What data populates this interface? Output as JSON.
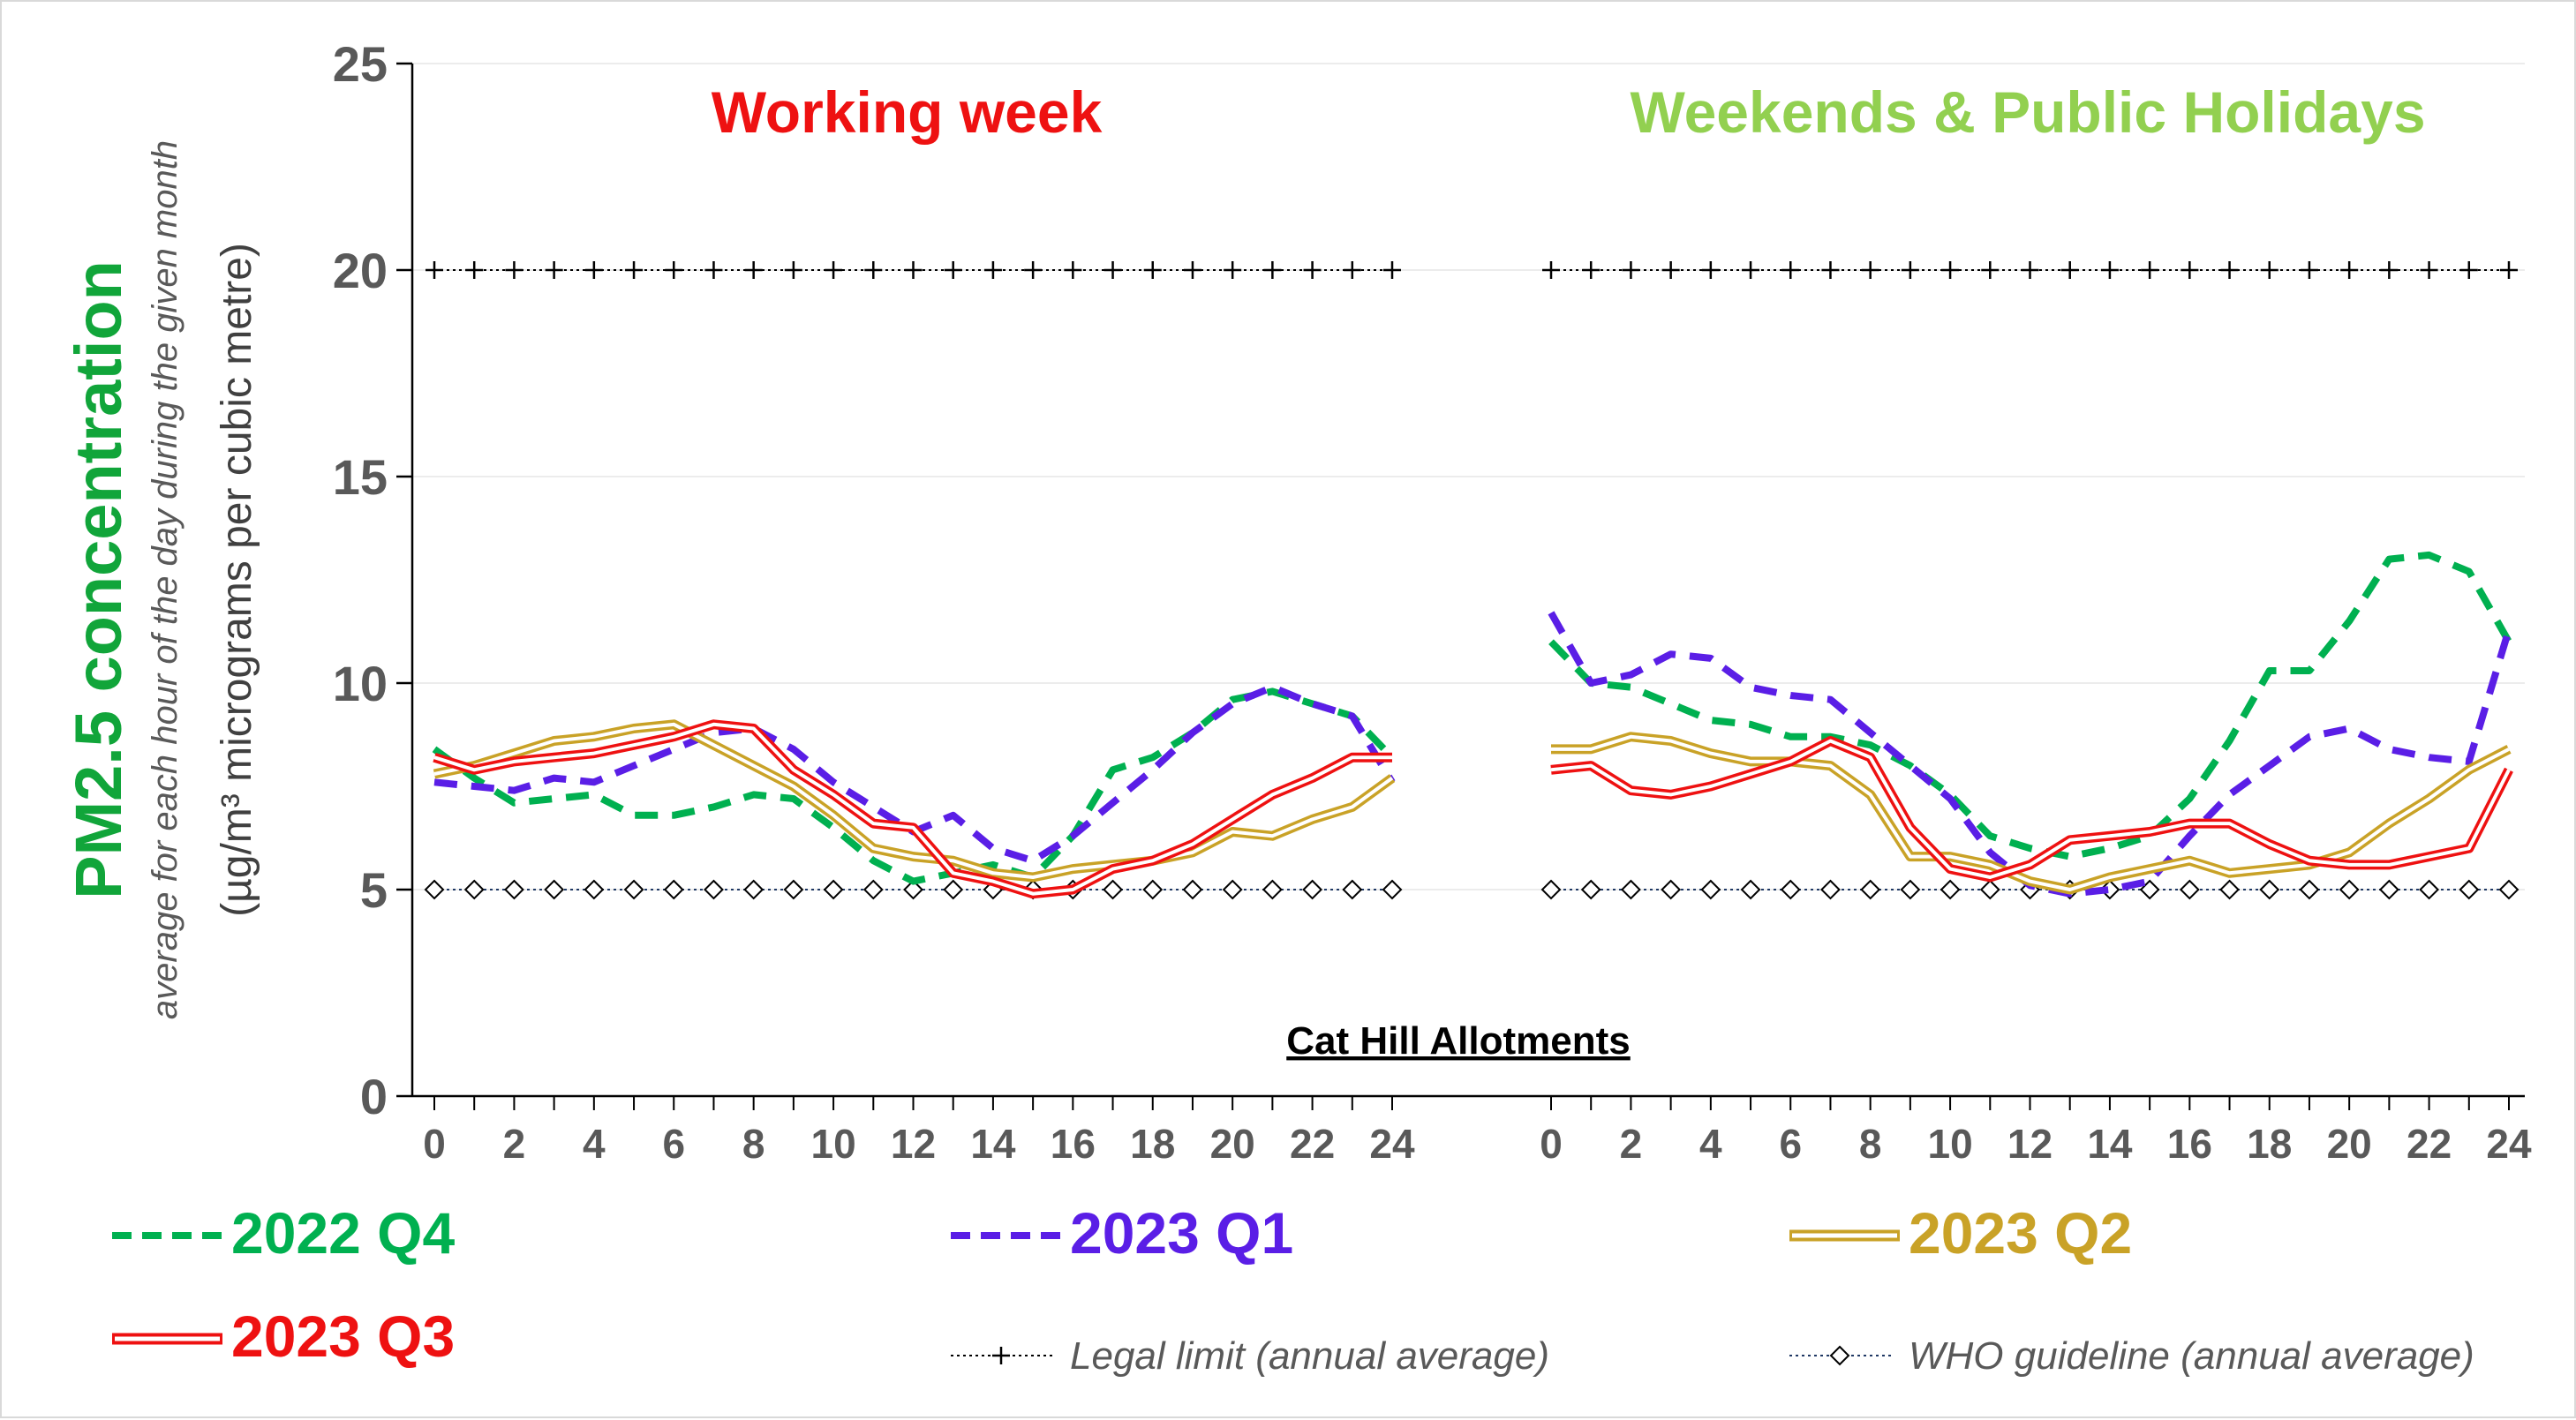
{
  "chart_data": {
    "type": "line",
    "ylabel_main": "PM2.5 concentration",
    "ylabel_sub": "average for each hour of the day during the given month",
    "ylabel_units": "(µg/m³ micrograms per cubic metre)",
    "site_label": "Cat Hill Allotments",
    "ylim": [
      0,
      25
    ],
    "y_ticks": [
      "0",
      "5",
      "10",
      "15",
      "20",
      "25"
    ],
    "x_ticks": [
      "0",
      "2",
      "4",
      "6",
      "8",
      "10",
      "12",
      "14",
      "16",
      "18",
      "20",
      "22",
      "24"
    ],
    "grid": "horizontal",
    "legend_position": "bottom",
    "panels": [
      {
        "key": "working",
        "title": "Working week",
        "title_color": "#ee1111"
      },
      {
        "key": "weekend",
        "title": "Weekends & Public Holidays",
        "title_color": "#92d050"
      }
    ],
    "series": [
      {
        "name": "2022 Q4",
        "color": "#00b050",
        "style": "dashed",
        "working": [
          8.4,
          7.7,
          7.1,
          7.2,
          7.3,
          6.8,
          6.8,
          7.0,
          7.3,
          7.2,
          6.5,
          5.7,
          5.2,
          5.4,
          5.6,
          5.3,
          6.3,
          7.9,
          8.2,
          8.8,
          9.6,
          9.8,
          9.5,
          9.2,
          8.2
        ],
        "weekend": [
          11.0,
          10.0,
          9.9,
          9.5,
          9.1,
          9.0,
          8.7,
          8.7,
          8.5,
          8.0,
          7.3,
          6.3,
          6.0,
          5.8,
          6.0,
          6.3,
          7.2,
          8.6,
          10.3,
          10.3,
          11.5,
          13.0,
          13.1,
          12.7,
          11.0
        ]
      },
      {
        "name": "2023 Q1",
        "color": "#5a1ee6",
        "style": "dashed",
        "working": [
          7.6,
          7.5,
          7.4,
          7.7,
          7.6,
          8.0,
          8.4,
          8.8,
          8.9,
          8.4,
          7.6,
          7.0,
          6.4,
          6.8,
          6.0,
          5.7,
          6.3,
          7.1,
          7.9,
          8.8,
          9.5,
          9.9,
          9.5,
          9.2,
          7.6
        ],
        "weekend": [
          11.7,
          10.0,
          10.2,
          10.7,
          10.6,
          9.9,
          9.7,
          9.6,
          8.8,
          8.0,
          7.2,
          5.9,
          5.1,
          4.9,
          5.0,
          5.2,
          6.3,
          7.3,
          8.0,
          8.7,
          8.9,
          8.4,
          8.2,
          8.1,
          11.3
        ]
      },
      {
        "name": "2023 Q2",
        "color": "#c9a227",
        "style": "double",
        "working": [
          7.8,
          8.0,
          8.3,
          8.6,
          8.7,
          8.9,
          9.0,
          8.5,
          8.0,
          7.5,
          6.8,
          6.0,
          5.8,
          5.7,
          5.4,
          5.3,
          5.5,
          5.6,
          5.7,
          5.9,
          6.4,
          6.3,
          6.7,
          7.0,
          7.7
        ],
        "weekend": [
          8.4,
          8.4,
          8.7,
          8.6,
          8.3,
          8.1,
          8.1,
          8.0,
          7.3,
          5.8,
          5.8,
          5.6,
          5.2,
          5.0,
          5.3,
          5.5,
          5.7,
          5.4,
          5.5,
          5.6,
          5.9,
          6.6,
          7.2,
          7.9,
          8.4
        ]
      },
      {
        "name": "2023 Q3",
        "color": "#ee1111",
        "style": "double",
        "working": [
          8.2,
          7.9,
          8.1,
          8.2,
          8.3,
          8.5,
          8.7,
          9.0,
          8.9,
          7.9,
          7.3,
          6.6,
          6.5,
          5.4,
          5.2,
          4.9,
          5.0,
          5.5,
          5.7,
          6.1,
          6.7,
          7.3,
          7.7,
          8.2,
          8.2
        ],
        "weekend": [
          7.9,
          8.0,
          7.4,
          7.3,
          7.5,
          7.8,
          8.1,
          8.6,
          8.2,
          6.5,
          5.5,
          5.3,
          5.6,
          6.2,
          6.3,
          6.4,
          6.6,
          6.6,
          6.1,
          5.7,
          5.6,
          5.6,
          5.8,
          6.0,
          7.9
        ]
      }
    ],
    "reference_lines": [
      {
        "name": "Legal limit (annual average)",
        "value": 20,
        "color": "#000000",
        "marker": "plus"
      },
      {
        "name": "WHO guideline (annual average)",
        "value": 5,
        "color": "#1f3864",
        "marker": "diamond"
      }
    ]
  }
}
